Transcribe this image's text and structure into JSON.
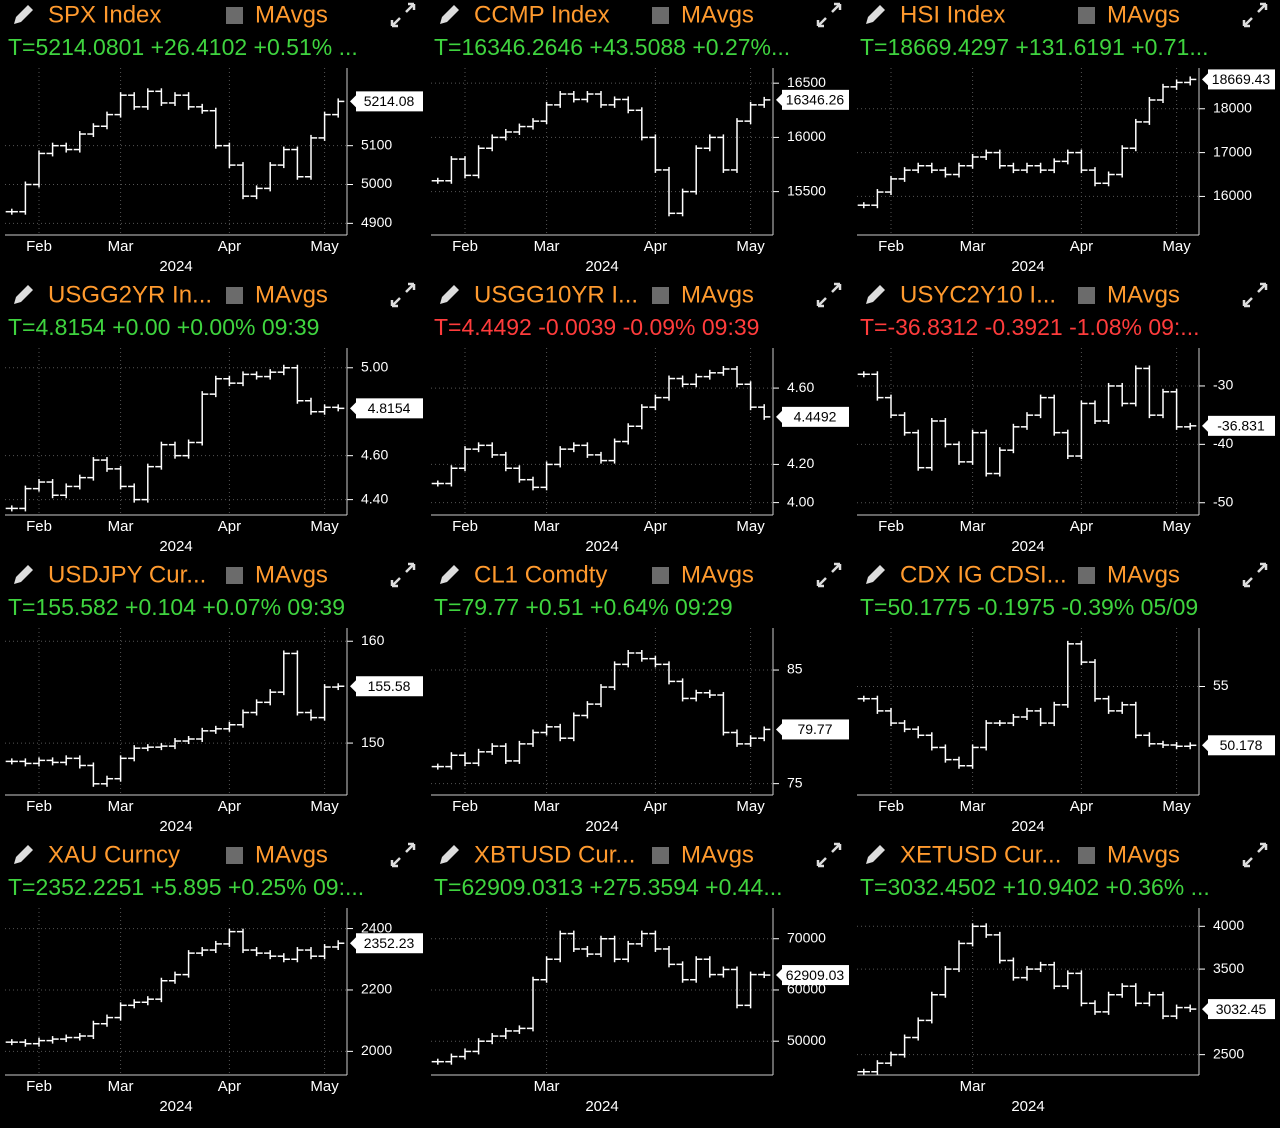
{
  "chart_data": [
    {
      "type": "ohlc",
      "title": "SPX Index",
      "mavgs": "MAvgs",
      "quote": "T=5214.0801 +26.4102 +0.51% ...",
      "quote_color": "#3fd43f",
      "color": "#ffffff",
      "categories": [
        null,
        null,
        "Feb",
        null,
        null,
        null,
        null,
        null,
        "Mar",
        null,
        null,
        null,
        null,
        null,
        null,
        null,
        "Apr",
        null,
        null,
        null,
        null,
        null,
        null,
        "May",
        null
      ],
      "values": [
        4930,
        5000,
        5080,
        5100,
        5090,
        5130,
        5150,
        5180,
        5230,
        5200,
        5240,
        5210,
        5230,
        5200,
        5190,
        5100,
        5050,
        4970,
        4990,
        5050,
        5090,
        5020,
        5120,
        5180,
        5214
      ],
      "ylim": [
        4870,
        5300
      ],
      "yticks": [
        4900,
        5000,
        5100
      ],
      "last_value": 5214.08,
      "x_label": "2024",
      "grid": true
    },
    {
      "type": "ohlc",
      "title": "CCMP Index",
      "mavgs": "MAvgs",
      "quote": "T=16346.2646 +43.5088 +0.27%...",
      "quote_color": "#3fd43f",
      "color": "#ffffff",
      "categories": [
        null,
        null,
        "Feb",
        null,
        null,
        null,
        null,
        null,
        "Mar",
        null,
        null,
        null,
        null,
        null,
        null,
        null,
        "Apr",
        null,
        null,
        null,
        null,
        null,
        null,
        "May",
        null
      ],
      "values": [
        15600,
        15800,
        15650,
        15900,
        16000,
        16050,
        16100,
        16150,
        16300,
        16400,
        16350,
        16400,
        16300,
        16350,
        16250,
        16000,
        15700,
        15300,
        15500,
        15900,
        16000,
        15700,
        16150,
        16300,
        16346
      ],
      "ylim": [
        15100,
        16640
      ],
      "yticks": [
        15500,
        16000,
        16500
      ],
      "last_value": 16346.26,
      "x_label": "2024",
      "grid": true
    },
    {
      "type": "ohlc",
      "title": "HSI Index",
      "mavgs": "MAvgs",
      "quote": "T=18669.4297 +131.6191 +0.71...",
      "quote_color": "#3fd43f",
      "color": "#ffffff",
      "categories": [
        null,
        null,
        "Feb",
        null,
        null,
        null,
        null,
        null,
        "Mar",
        null,
        null,
        null,
        null,
        null,
        null,
        null,
        "Apr",
        null,
        null,
        null,
        null,
        null,
        null,
        "May",
        null
      ],
      "values": [
        15800,
        16100,
        16400,
        16600,
        16700,
        16600,
        16500,
        16700,
        16900,
        17000,
        16700,
        16600,
        16700,
        16600,
        16800,
        17000,
        16600,
        16300,
        16500,
        17100,
        17700,
        18200,
        18500,
        18600,
        18669
      ],
      "ylim": [
        15120,
        18930
      ],
      "yticks": [
        16000,
        17000,
        18000
      ],
      "last_value": 18669.43,
      "x_label": "2024",
      "grid": true
    },
    {
      "type": "ohlc",
      "title": "USGG2YR In...",
      "mavgs": "MAvgs",
      "quote": "T=4.8154 +0.00 +0.00% 09:39",
      "quote_color": "#3fd43f",
      "color": "#ffffff",
      "categories": [
        null,
        null,
        "Feb",
        null,
        null,
        null,
        null,
        null,
        "Mar",
        null,
        null,
        null,
        null,
        null,
        null,
        null,
        "Apr",
        null,
        null,
        null,
        null,
        null,
        null,
        "May",
        null
      ],
      "values": [
        4.36,
        4.45,
        4.48,
        4.42,
        4.46,
        4.5,
        4.58,
        4.54,
        4.46,
        4.4,
        4.55,
        4.65,
        4.6,
        4.66,
        4.88,
        4.95,
        4.93,
        4.97,
        4.96,
        4.98,
        5.0,
        4.85,
        4.8,
        4.82,
        4.8154
      ],
      "ylim": [
        4.33,
        5.09
      ],
      "yticks": [
        {
          "value": 4.4,
          "label": "4.40"
        },
        {
          "value": 4.6,
          "label": "4.60"
        },
        {
          "value": 5,
          "label": "5.00"
        }
      ],
      "last_value": 4.8154,
      "x_label": "2024",
      "grid": true
    },
    {
      "type": "ohlc",
      "title": "USGG10YR I...",
      "mavgs": "MAvgs",
      "quote": "T=4.4492 -0.0039 -0.09% 09:39",
      "quote_color": "#ff3c3c",
      "color": "#ffffff",
      "categories": [
        null,
        null,
        "Feb",
        null,
        null,
        null,
        null,
        null,
        "Mar",
        null,
        null,
        null,
        null,
        null,
        null,
        null,
        "Apr",
        null,
        null,
        null,
        null,
        null,
        null,
        "May",
        null
      ],
      "values": [
        4.1,
        4.18,
        4.28,
        4.3,
        4.25,
        4.18,
        4.12,
        4.08,
        4.2,
        4.28,
        4.3,
        4.25,
        4.22,
        4.32,
        4.4,
        4.5,
        4.55,
        4.65,
        4.62,
        4.66,
        4.68,
        4.7,
        4.62,
        4.5,
        4.4492
      ],
      "ylim": [
        3.935,
        4.81
      ],
      "yticks": [
        {
          "value": 4,
          "label": "4.00"
        },
        {
          "value": 4.2,
          "label": "4.20"
        },
        {
          "value": 4.6,
          "label": "4.60"
        }
      ],
      "last_value": 4.4492,
      "x_label": "2024",
      "grid": true
    },
    {
      "type": "ohlc",
      "title": "USYC2Y10 I...",
      "mavgs": "MAvgs",
      "quote": "T=-36.8312 -0.3921 -1.08% 09:...",
      "quote_color": "#ff3c3c",
      "color": "#ffffff",
      "categories": [
        null,
        null,
        "Feb",
        null,
        null,
        null,
        null,
        null,
        "Mar",
        null,
        null,
        null,
        null,
        null,
        null,
        null,
        "Apr",
        null,
        null,
        null,
        null,
        null,
        null,
        "May",
        null
      ],
      "values": [
        -28,
        -32,
        -35,
        -38,
        -44,
        -36,
        -40,
        -43,
        -38,
        -45,
        -41,
        -37,
        -35,
        -32,
        -38,
        -42,
        -33,
        -36,
        -30,
        -33,
        -27,
        -35,
        -31,
        -37,
        -36.831
      ],
      "ylim": [
        -52.1,
        -23.5
      ],
      "yticks": [
        -30,
        -40,
        -50
      ],
      "last_value": -36.831,
      "x_label": "2024",
      "grid": true
    },
    {
      "type": "ohlc",
      "title": "USDJPY Cur...",
      "mavgs": "MAvgs",
      "quote": "T=155.582 +0.104 +0.07% 09:39",
      "quote_color": "#3fd43f",
      "color": "#ffffff",
      "categories": [
        null,
        null,
        "Feb",
        null,
        null,
        null,
        null,
        null,
        "Mar",
        null,
        null,
        null,
        null,
        null,
        null,
        null,
        "Apr",
        null,
        null,
        null,
        null,
        null,
        null,
        "May",
        null
      ],
      "values": [
        148.2,
        148.0,
        148.3,
        148.1,
        148.5,
        147.8,
        146.0,
        146.5,
        148.5,
        149.5,
        149.6,
        149.7,
        150.2,
        150.4,
        151.2,
        151.4,
        151.8,
        153.0,
        154.0,
        155.0,
        158.8,
        153.0,
        152.5,
        155.5,
        155.58
      ],
      "ylim": [
        144.9,
        161.3
      ],
      "yticks": [
        150,
        160
      ],
      "last_value": 155.58,
      "x_label": "2024",
      "grid": true
    },
    {
      "type": "ohlc",
      "title": "CL1 Comdty",
      "mavgs": "MAvgs",
      "quote": "T=79.77 +0.51 +0.64% 09:29",
      "quote_color": "#3fd43f",
      "color": "#ffffff",
      "categories": [
        null,
        null,
        "Feb",
        null,
        null,
        null,
        null,
        null,
        "Mar",
        null,
        null,
        null,
        null,
        null,
        null,
        null,
        "Apr",
        null,
        null,
        null,
        null,
        null,
        null,
        "May",
        null
      ],
      "values": [
        76.5,
        77.5,
        76.8,
        77.8,
        78.3,
        77.0,
        78.5,
        79.5,
        80.0,
        79.0,
        81.0,
        82.0,
        83.5,
        85.5,
        86.5,
        86.0,
        85.5,
        84.0,
        82.5,
        83.0,
        82.8,
        79.5,
        78.5,
        79.0,
        79.77
      ],
      "ylim": [
        74,
        88.7
      ],
      "yticks": [
        75,
        85
      ],
      "last_value": 79.77,
      "x_label": "2024",
      "grid": true
    },
    {
      "type": "ohlc",
      "title": "CDX IG CDSI...",
      "mavgs": "MAvgs",
      "quote": "T=50.1775 -0.1975 -0.39% 05/09",
      "quote_color": "#3fd43f",
      "color": "#ffffff",
      "categories": [
        null,
        null,
        "Feb",
        null,
        null,
        null,
        null,
        null,
        "Mar",
        null,
        null,
        null,
        null,
        null,
        null,
        null,
        "Apr",
        null,
        null,
        null,
        null,
        null,
        null,
        "May",
        null
      ],
      "values": [
        54.0,
        53.0,
        52.0,
        51.5,
        51.0,
        50.0,
        49.0,
        48.5,
        50.0,
        52.0,
        52.0,
        52.5,
        53.0,
        52.0,
        53.5,
        58.5,
        57.0,
        54.0,
        53.0,
        53.5,
        51.0,
        50.3,
        50.2,
        50.1,
        50.1775
      ],
      "ylim": [
        46.1,
        59.8
      ],
      "yticks": [
        55
      ],
      "last_value": 50.178,
      "x_label": "2024",
      "grid": true
    },
    {
      "type": "ohlc",
      "title": "XAU Curncy",
      "mavgs": "MAvgs",
      "quote": "T=2352.2251 +5.895 +0.25% 09:...",
      "quote_color": "#3fd43f",
      "color": "#ffffff",
      "categories": [
        null,
        null,
        "Feb",
        null,
        null,
        null,
        null,
        null,
        "Mar",
        null,
        null,
        null,
        null,
        null,
        null,
        null,
        "Apr",
        null,
        null,
        null,
        null,
        null,
        null,
        "May",
        null
      ],
      "values": [
        2030,
        2025,
        2035,
        2040,
        2045,
        2050,
        2090,
        2110,
        2150,
        2160,
        2170,
        2230,
        2250,
        2320,
        2330,
        2350,
        2390,
        2330,
        2320,
        2310,
        2300,
        2330,
        2310,
        2340,
        2352.23
      ],
      "ylim": [
        1923,
        2467
      ],
      "yticks": [
        2000,
        2200,
        2400
      ],
      "last_value": 2352.23,
      "x_label": "2024",
      "grid": true
    },
    {
      "type": "ohlc",
      "title": "XBTUSD Cur...",
      "mavgs": "MAvgs",
      "quote": "T=62909.0313 +275.3594 +0.44...",
      "quote_color": "#3fd43f",
      "color": "#ffffff",
      "categories": [
        null,
        null,
        null,
        null,
        null,
        null,
        null,
        null,
        "Mar",
        null,
        null,
        null,
        null,
        null,
        null,
        null,
        null,
        null,
        null,
        null,
        null,
        null,
        null,
        null,
        null
      ],
      "values": [
        46000,
        47000,
        48000,
        50000,
        51000,
        52000,
        52500,
        62000,
        66000,
        71000,
        68000,
        67000,
        70000,
        66000,
        69000,
        71000,
        68000,
        65000,
        62000,
        66000,
        63000,
        64000,
        57000,
        63000,
        62909.03
      ],
      "ylim": [
        43400,
        76000
      ],
      "yticks": [
        50000,
        60000,
        70000
      ],
      "last_value": 62909.03,
      "x_label": "2024",
      "grid": true
    },
    {
      "type": "ohlc",
      "title": "XETUSD Cur...",
      "mavgs": "MAvgs",
      "quote": "T=3032.4502 +10.9402 +0.36% ...",
      "quote_color": "#3fd43f",
      "color": "#ffffff",
      "categories": [
        null,
        null,
        null,
        null,
        null,
        null,
        null,
        null,
        "Mar",
        null,
        null,
        null,
        null,
        null,
        null,
        null,
        null,
        null,
        null,
        null,
        null,
        null,
        null,
        null,
        null
      ],
      "values": [
        2300,
        2400,
        2500,
        2700,
        2900,
        3200,
        3500,
        3800,
        4000,
        3900,
        3600,
        3400,
        3500,
        3550,
        3300,
        3450,
        3100,
        3000,
        3200,
        3300,
        3100,
        3200,
        2950,
        3050,
        3032.45
      ],
      "ylim": [
        2262,
        4214
      ],
      "yticks": [
        2500,
        3500,
        4000
      ],
      "last_value": 3032.45,
      "x_label": "2024",
      "grid": true
    }
  ]
}
